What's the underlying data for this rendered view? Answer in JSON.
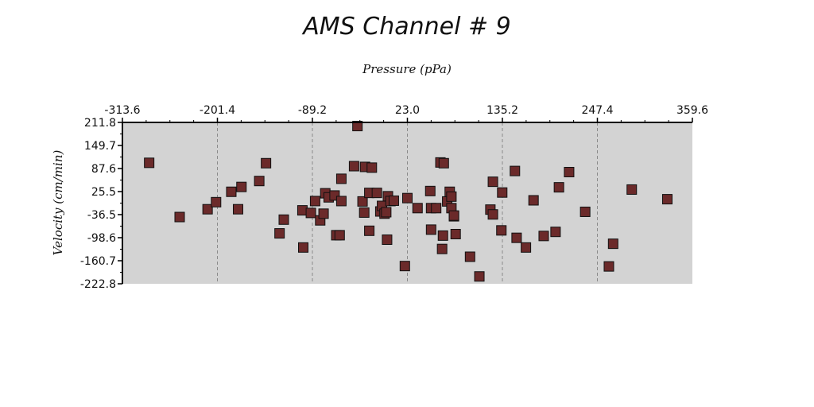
{
  "chart_data": {
    "type": "scatter",
    "title": "AMS Channel # 9",
    "xlabel": "Pressure (pPa)",
    "ylabel": "Velocity (cm/min)",
    "xlim": [
      -313.6,
      359.6
    ],
    "ylim": [
      -222.8,
      211.8
    ],
    "x_ticks": [
      "-313.6",
      "-201.4",
      "-89.2",
      "23.0",
      "135.2",
      "247.4",
      "359.6"
    ],
    "x_tick_values": [
      -313.6,
      -201.4,
      -89.2,
      23.0,
      135.2,
      247.4,
      359.6
    ],
    "y_ticks": [
      "211.8",
      "149.7",
      "87.6",
      "25.5",
      "-36.5",
      "-98.6",
      "-160.7",
      "-222.8"
    ],
    "y_tick_values": [
      211.8,
      149.7,
      87.6,
      25.5,
      -36.5,
      -98.6,
      -160.7,
      -222.8
    ],
    "x_axis_position": "top",
    "grid": "vertical dashed at major x ticks",
    "background": "#d3d3d3",
    "marker": "square",
    "marker_color": "#6b2a2a",
    "points": [
      {
        "x": -282,
        "y": 103
      },
      {
        "x": -246,
        "y": -43
      },
      {
        "x": -213,
        "y": -22
      },
      {
        "x": -203,
        "y": -3
      },
      {
        "x": -185,
        "y": 25
      },
      {
        "x": -177,
        "y": -22
      },
      {
        "x": -173,
        "y": 38
      },
      {
        "x": -152,
        "y": 54
      },
      {
        "x": -144,
        "y": 102
      },
      {
        "x": -128,
        "y": -87
      },
      {
        "x": -123,
        "y": -50
      },
      {
        "x": -101,
        "y": -25
      },
      {
        "x": -100,
        "y": -125
      },
      {
        "x": -91,
        "y": -32
      },
      {
        "x": -86,
        "y": 0
      },
      {
        "x": -80,
        "y": -52
      },
      {
        "x": -76,
        "y": -34
      },
      {
        "x": -74,
        "y": 21
      },
      {
        "x": -70,
        "y": 10
      },
      {
        "x": -63,
        "y": 15
      },
      {
        "x": -61,
        "y": -92
      },
      {
        "x": -57,
        "y": -92
      },
      {
        "x": -55,
        "y": 0
      },
      {
        "x": -55,
        "y": 60
      },
      {
        "x": -40,
        "y": 94
      },
      {
        "x": -36,
        "y": 202
      },
      {
        "x": -30,
        "y": -1
      },
      {
        "x": -28,
        "y": -31
      },
      {
        "x": -27,
        "y": 92
      },
      {
        "x": -22,
        "y": 22
      },
      {
        "x": -22,
        "y": -80
      },
      {
        "x": -19,
        "y": 90
      },
      {
        "x": -13,
        "y": 22
      },
      {
        "x": -9,
        "y": -28
      },
      {
        "x": -7,
        "y": -13
      },
      {
        "x": -4,
        "y": -34
      },
      {
        "x": -2,
        "y": -30
      },
      {
        "x": 0,
        "y": 13
      },
      {
        "x": -1,
        "y": -104
      },
      {
        "x": 3,
        "y": 0
      },
      {
        "x": 7,
        "y": 1
      },
      {
        "x": 20,
        "y": -175
      },
      {
        "x": 23,
        "y": 8
      },
      {
        "x": 35,
        "y": -19
      },
      {
        "x": 50,
        "y": 27
      },
      {
        "x": 51,
        "y": -77
      },
      {
        "x": 51,
        "y": -19
      },
      {
        "x": 57,
        "y": -19
      },
      {
        "x": 62,
        "y": 104
      },
      {
        "x": 65,
        "y": -93
      },
      {
        "x": 64,
        "y": -129
      },
      {
        "x": 66,
        "y": 102
      },
      {
        "x": 70,
        "y": -1
      },
      {
        "x": 73,
        "y": 25
      },
      {
        "x": 75,
        "y": 12
      },
      {
        "x": 75,
        "y": -19
      },
      {
        "x": 78,
        "y": -41
      },
      {
        "x": 78,
        "y": -39
      },
      {
        "x": 80,
        "y": -89
      },
      {
        "x": 97,
        "y": -150
      },
      {
        "x": 108,
        "y": -203
      },
      {
        "x": 121,
        "y": -23
      },
      {
        "x": 124,
        "y": 52
      },
      {
        "x": 124,
        "y": -36
      },
      {
        "x": 134,
        "y": -79
      },
      {
        "x": 135,
        "y": 23
      },
      {
        "x": 152,
        "y": -99
      },
      {
        "x": 150,
        "y": 81
      },
      {
        "x": 163,
        "y": -125
      },
      {
        "x": 172,
        "y": 2
      },
      {
        "x": 184,
        "y": -94
      },
      {
        "x": 198,
        "y": -83
      },
      {
        "x": 202,
        "y": 37
      },
      {
        "x": 214,
        "y": 78
      },
      {
        "x": 233,
        "y": -29
      },
      {
        "x": 261,
        "y": -176
      },
      {
        "x": 266,
        "y": -115
      },
      {
        "x": 288,
        "y": 31
      },
      {
        "x": 330,
        "y": 5
      }
    ]
  }
}
